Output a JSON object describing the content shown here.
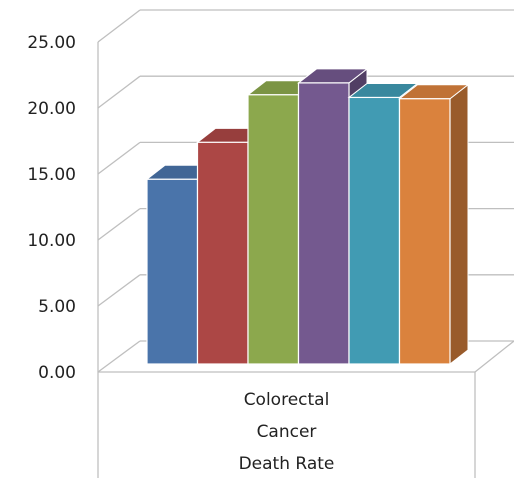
{
  "chart_data": {
    "type": "bar",
    "style": "3d-clustered-column",
    "categories": [
      "Colorectal Cancer Death Rate"
    ],
    "category_lines": [
      "Colorectal",
      "Cancer",
      "Death Rate"
    ],
    "series": [
      {
        "values": [
          14.6
        ],
        "color": "#4A74AA"
      },
      {
        "values": [
          17.4
        ],
        "color": "#AC4745"
      },
      {
        "values": [
          21.0
        ],
        "color": "#8CA84D"
      },
      {
        "values": [
          21.9
        ],
        "color": "#74598F"
      },
      {
        "values": [
          20.8
        ],
        "color": "#419BB3"
      },
      {
        "values": [
          20.7
        ],
        "color": "#DA823D"
      }
    ],
    "y_ticks": [
      "0.00",
      "5.00",
      "10.00",
      "15.00",
      "20.00",
      "25.00"
    ],
    "ylim": [
      0,
      25
    ],
    "grid": true,
    "legend": "none",
    "title": "",
    "xlabel": "",
    "ylabel": ""
  }
}
